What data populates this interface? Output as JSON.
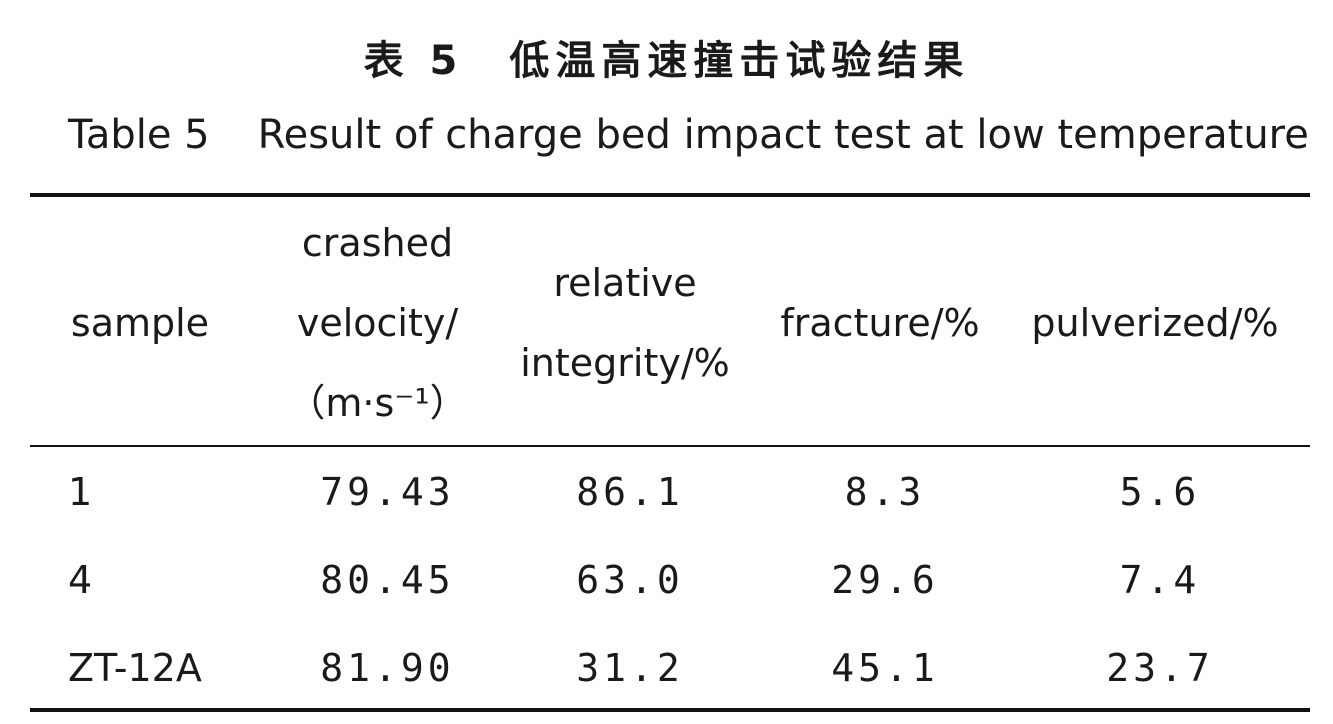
{
  "caption": {
    "cn": "表 5　低温高速撞击试验结果",
    "en_label": "Table 5",
    "en_title": "Result of charge bed impact test at low temperature"
  },
  "table": {
    "headers": {
      "sample": "sample",
      "velocity_line1": "crashed",
      "velocity_line2": "velocity/",
      "velocity_line3": "（m·s⁻¹）",
      "relative_line1": "relative",
      "relative_line2": "integrity/%",
      "fracture": "fracture/%",
      "pulverized": "pulverized/%"
    },
    "rows": [
      [
        "1",
        "79.43",
        "86.1",
        "8.3",
        "5.6"
      ],
      [
        "4",
        "80.45",
        "63.0",
        "29.6",
        "7.4"
      ],
      [
        "ZT-12A",
        "81.90",
        "31.2",
        "45.1",
        "23.7"
      ]
    ]
  }
}
